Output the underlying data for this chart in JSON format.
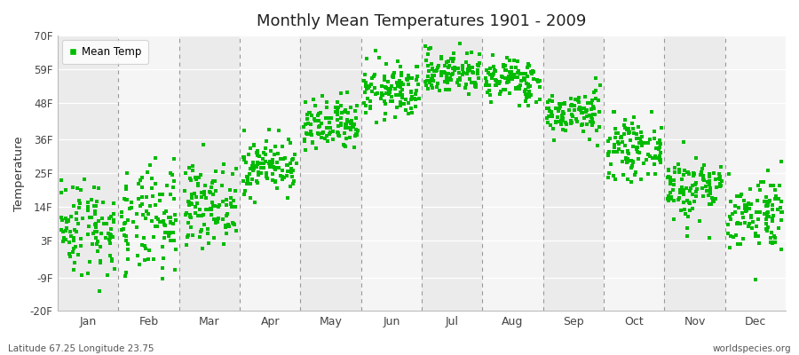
{
  "title": "Monthly Mean Temperatures 1901 - 2009",
  "ylabel": "Temperature",
  "subtitle": "Latitude 67.25 Longitude 23.75",
  "watermark": "worldspecies.org",
  "legend_label": "Mean Temp",
  "dot_color": "#00BB00",
  "bg_color": "#ffffff",
  "plot_bg_color": "#ffffff",
  "band_color_even": "#ebebeb",
  "band_color_odd": "#f5f5f5",
  "ytick_labels": [
    "-20F",
    "-9F",
    "3F",
    "14F",
    "25F",
    "36F",
    "48F",
    "59F",
    "70F"
  ],
  "ytick_values": [
    -20,
    -9,
    3,
    14,
    25,
    36,
    48,
    59,
    70
  ],
  "months": [
    "Jan",
    "Feb",
    "Mar",
    "Apr",
    "May",
    "Jun",
    "Jul",
    "Aug",
    "Sep",
    "Oct",
    "Nov",
    "Dec"
  ],
  "month_centers": [
    0.5,
    1.5,
    2.5,
    3.5,
    4.5,
    5.5,
    6.5,
    7.5,
    8.5,
    9.5,
    10.5,
    11.5
  ],
  "month_boundaries": [
    0.0,
    1.0,
    2.0,
    3.0,
    4.0,
    5.0,
    6.0,
    7.0,
    8.0,
    9.0,
    10.0,
    11.0,
    12.0
  ],
  "xlim": [
    0,
    12
  ],
  "ylim": [
    -20,
    70
  ],
  "n_years": 109,
  "monthly_mean_temps_C": [
    -13.5,
    -13.0,
    -9.5,
    -2.5,
    4.5,
    11.0,
    14.5,
    13.0,
    7.0,
    0.5,
    -6.5,
    -11.0
  ],
  "monthly_std_C": [
    4.5,
    5.0,
    3.5,
    2.5,
    2.5,
    2.5,
    2.0,
    2.0,
    2.0,
    2.5,
    3.0,
    3.5
  ],
  "seed": 42
}
